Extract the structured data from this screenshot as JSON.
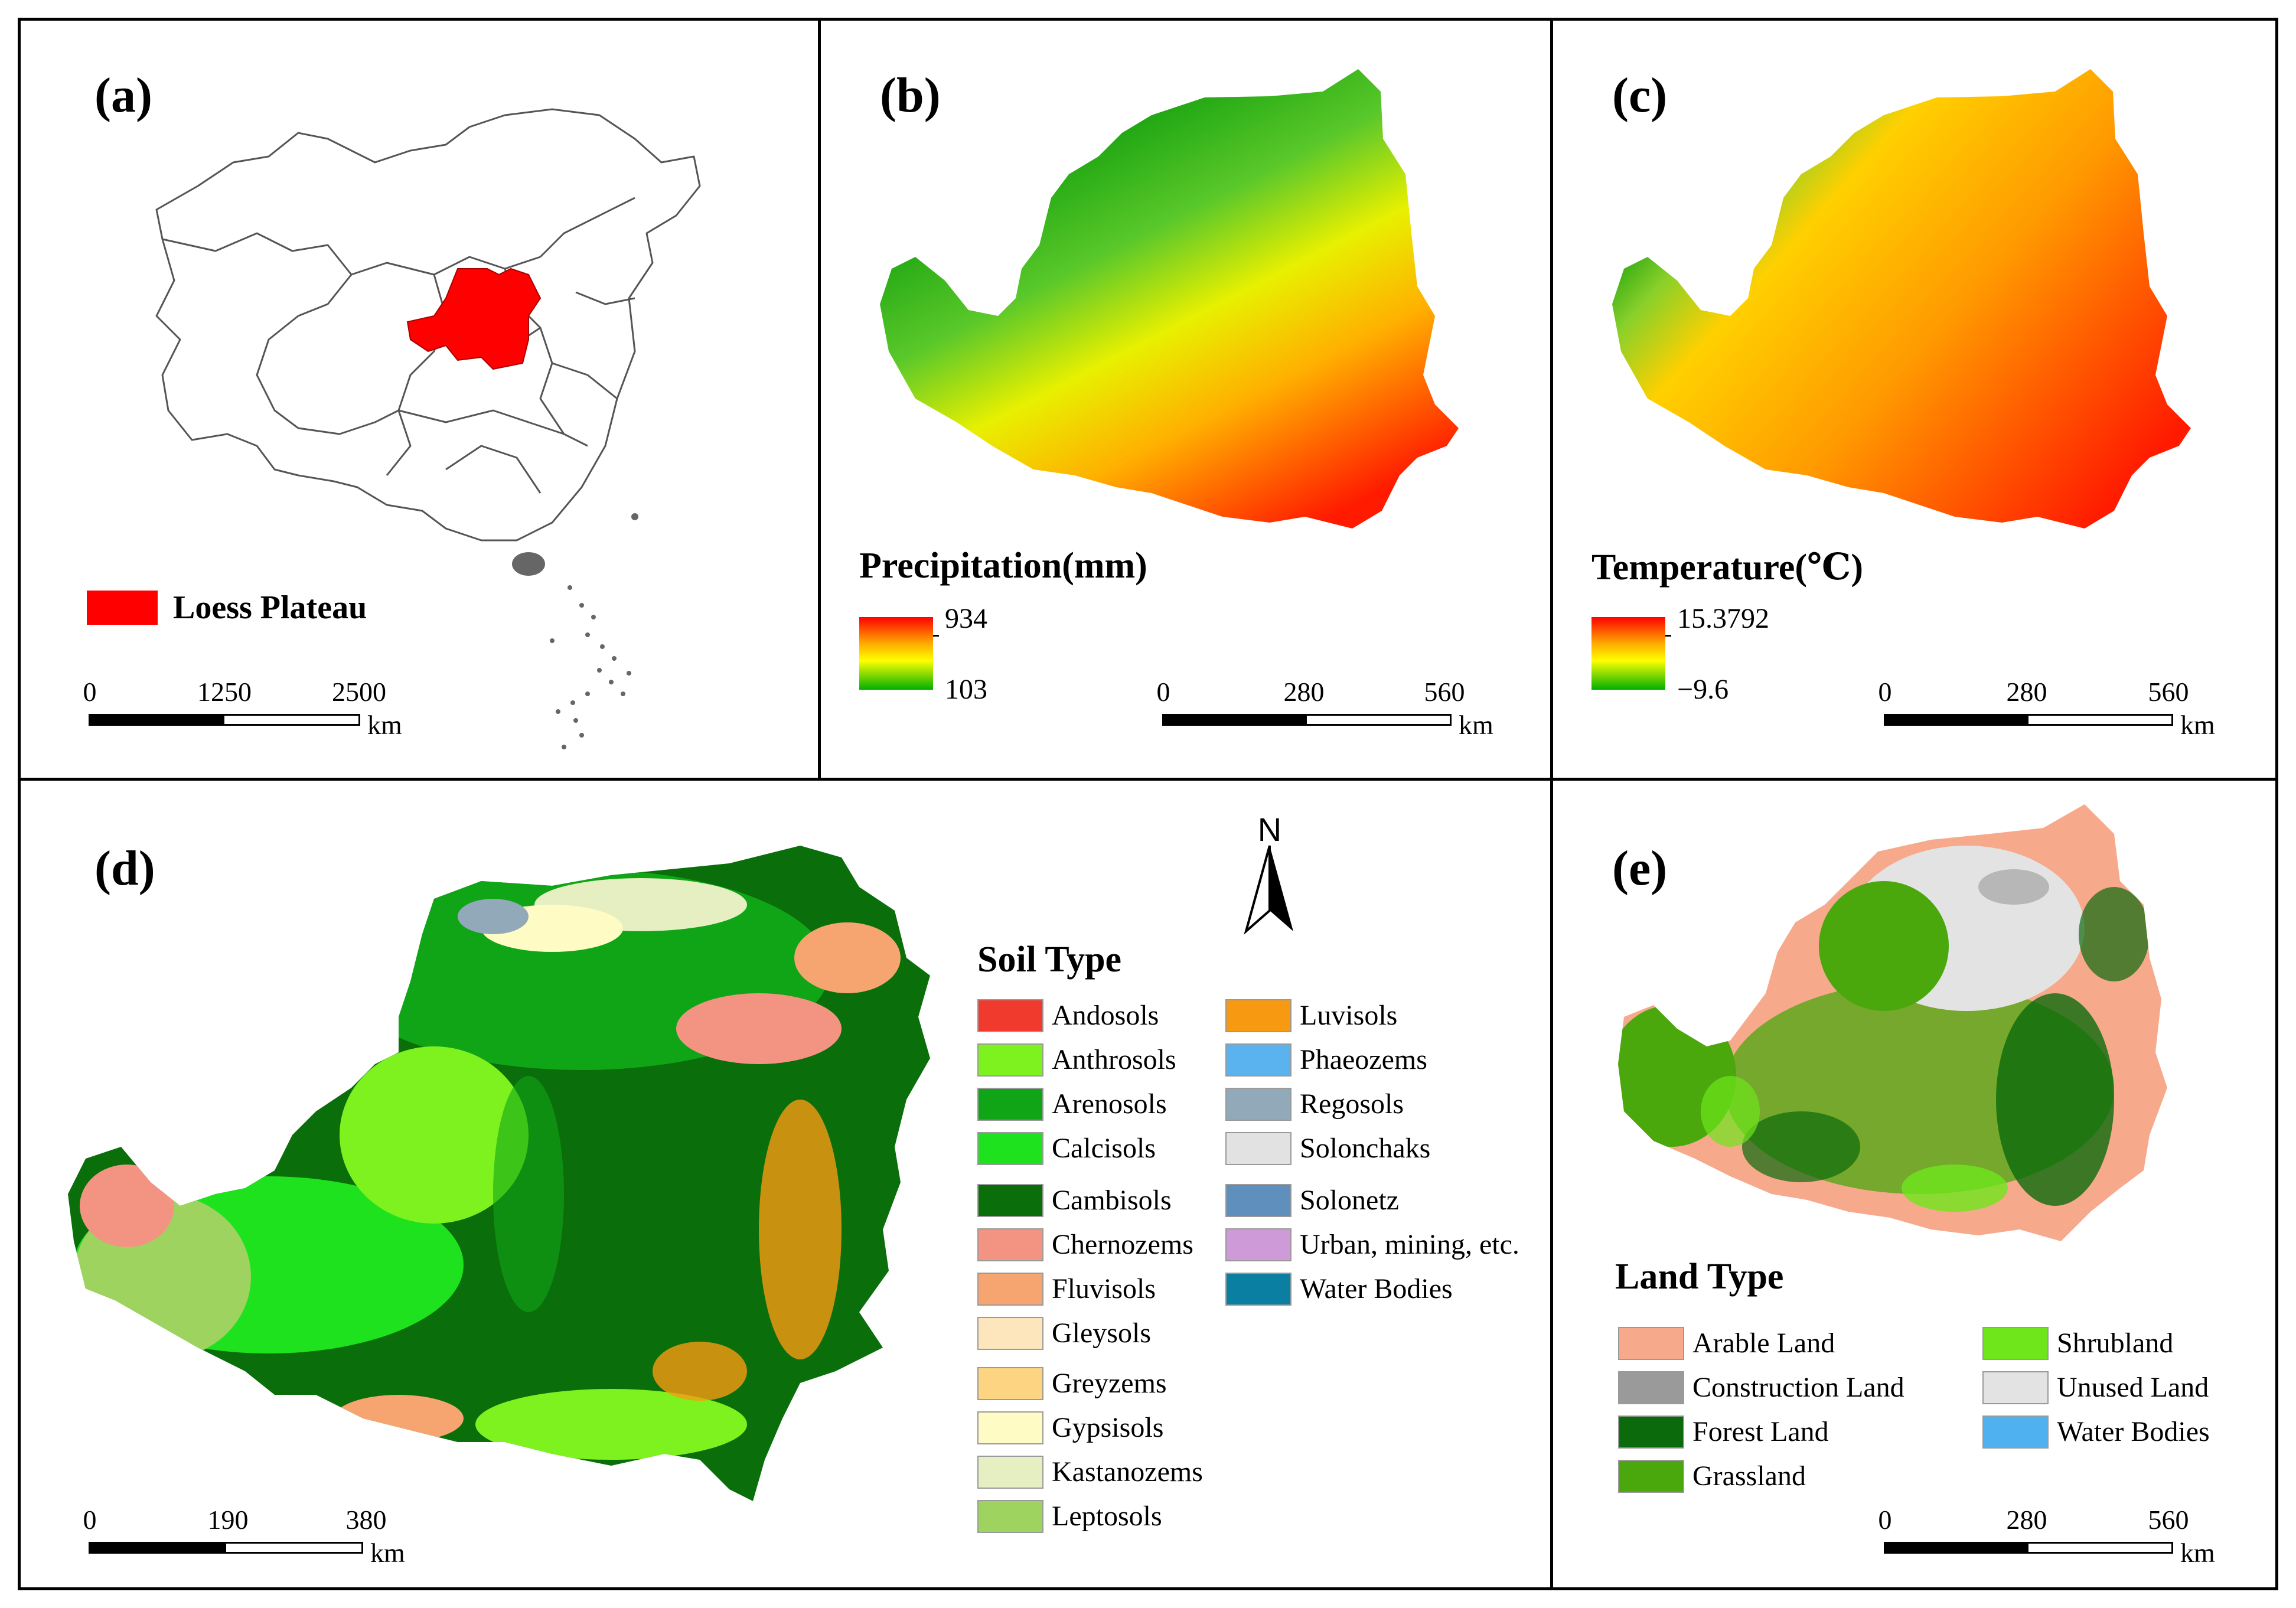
{
  "panels": {
    "a": {
      "label": "(a)",
      "legend": {
        "label": "Loess Plateau",
        "color": "#ff0000"
      },
      "scale": {
        "ticks": [
          "0",
          "1250",
          "2500"
        ],
        "unit": "km"
      }
    },
    "b": {
      "label": "(b)",
      "title": "Precipitation(mm)",
      "colorbar": {
        "max": "934",
        "min": "103",
        "colors": [
          "#ff0000",
          "#ffa500",
          "#ffff00",
          "#00b000"
        ]
      },
      "scale": {
        "ticks": [
          "0",
          "280",
          "560"
        ],
        "unit": "km"
      }
    },
    "c": {
      "label": "(c)",
      "title": "Temperature(℃)",
      "colorbar": {
        "max": "15.3792",
        "min": "−9.6",
        "colors": [
          "#ff0000",
          "#ffa500",
          "#ffff00",
          "#00b000"
        ]
      },
      "scale": {
        "ticks": [
          "0",
          "280",
          "560"
        ],
        "unit": "km"
      }
    },
    "d": {
      "label": "(d)",
      "north": "N",
      "legend_title": "Soil Type",
      "legend_items": [
        {
          "label": "Andosols",
          "color": "#f03a2e"
        },
        {
          "label": "Anthrosols",
          "color": "#7ef21e"
        },
        {
          "label": "Arenosols",
          "color": "#10a516"
        },
        {
          "label": "Calcisols",
          "color": "#1fe21f"
        },
        {
          "label": "Cambisols",
          "color": "#0a6e0a"
        },
        {
          "label": "Chernozems",
          "color": "#f39482"
        },
        {
          "label": "Fluvisols",
          "color": "#f6a570"
        },
        {
          "label": "Gleysols",
          "color": "#fde6bb"
        },
        {
          "label": "Greyzems",
          "color": "#fdd582"
        },
        {
          "label": "Gypsisols",
          "color": "#fefcc4"
        },
        {
          "label": "Kastanozems",
          "color": "#e6efc1"
        },
        {
          "label": "Leptosols",
          "color": "#9dd35e"
        },
        {
          "label": "Luvisols",
          "color": "#f79a12"
        },
        {
          "label": "Phaeozems",
          "color": "#5ab3ee"
        },
        {
          "label": "Regosols",
          "color": "#91a9b9"
        },
        {
          "label": "Solonchaks",
          "color": "#e2e2e2"
        },
        {
          "label": "Solonetz",
          "color": "#5f8fbd"
        },
        {
          "label": "Urban, mining, etc.",
          "color": "#cf9ad8"
        },
        {
          "label": "Water Bodies",
          "color": "#0a7fa2"
        }
      ],
      "scale": {
        "ticks": [
          "0",
          "190",
          "380"
        ],
        "unit": "km"
      }
    },
    "e": {
      "label": "(e)",
      "legend_title": "Land Type",
      "legend_items": [
        {
          "label": "Arable Land",
          "color": "#f7a98c"
        },
        {
          "label": "Construction Land",
          "color": "#9a9a9a"
        },
        {
          "label": "Forest Land",
          "color": "#0b6a0b"
        },
        {
          "label": "Grassland",
          "color": "#4aa80d"
        },
        {
          "label": "Shrubland",
          "color": "#6ee61b"
        },
        {
          "label": "Unused Land",
          "color": "#e3e3e3"
        },
        {
          "label": "Water Bodies",
          "color": "#4fb1ef"
        }
      ],
      "scale": {
        "ticks": [
          "0",
          "280",
          "560"
        ],
        "unit": "km"
      }
    }
  }
}
